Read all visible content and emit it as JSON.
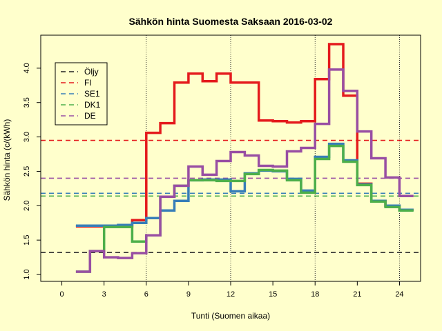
{
  "chart_data": {
    "type": "line",
    "title": "Sähkön hinta Suomesta Saksaan 2016-03-02",
    "xlabel": "Tunti (Suomen aikaa)",
    "ylabel": "Sähkön hinta (c/(kWh)",
    "xlim": [
      -1.5,
      25.5
    ],
    "ylim": [
      0.9,
      4.48
    ],
    "x_ticks": [
      0,
      3,
      6,
      9,
      12,
      15,
      18,
      21,
      24
    ],
    "y_ticks": [
      1.0,
      1.5,
      2.0,
      2.5,
      3.0,
      3.5,
      4.0
    ],
    "vertical_dotted_lines": [
      6,
      12,
      18,
      24
    ],
    "step_style": "stepped, each hour h drawn over [h, h+1]",
    "series": [
      {
        "name": "FI",
        "color": "#e41a1c",
        "x": [
          1,
          2,
          3,
          4,
          5,
          6,
          7,
          8,
          9,
          10,
          11,
          12,
          13,
          14,
          15,
          16,
          17,
          18,
          19,
          20,
          21,
          22,
          23,
          24
        ],
        "values": [
          1.7,
          1.7,
          1.7,
          1.7,
          1.79,
          3.06,
          3.2,
          3.79,
          3.92,
          3.81,
          3.92,
          3.79,
          3.79,
          3.24,
          3.23,
          3.21,
          3.23,
          3.84,
          4.35,
          3.6,
          2.32,
          2.07,
          2.0,
          1.94
        ]
      },
      {
        "name": "SE1",
        "color": "#377eb8",
        "x": [
          1,
          2,
          3,
          4,
          5,
          6,
          7,
          8,
          9,
          10,
          11,
          12,
          13,
          14,
          15,
          16,
          17,
          18,
          19,
          20,
          21,
          22,
          23,
          24
        ],
        "values": [
          1.71,
          1.71,
          1.71,
          1.72,
          1.75,
          1.82,
          1.93,
          2.07,
          2.37,
          2.38,
          2.38,
          2.21,
          2.47,
          2.51,
          2.5,
          2.39,
          2.22,
          2.71,
          2.9,
          2.66,
          2.31,
          2.07,
          2.0,
          1.94
        ]
      },
      {
        "name": "DK1",
        "color": "#4daf4a",
        "x": [
          1,
          2,
          3,
          4,
          5,
          6,
          7,
          8,
          9,
          10,
          11,
          12,
          13,
          14,
          15,
          16,
          17,
          18,
          19,
          20,
          21,
          22,
          23,
          24
        ],
        "values": [
          1.04,
          1.34,
          1.69,
          1.69,
          1.48,
          1.57,
          2.13,
          2.29,
          2.37,
          2.37,
          2.36,
          2.36,
          2.46,
          2.52,
          2.51,
          2.37,
          2.19,
          2.68,
          2.87,
          2.64,
          2.3,
          2.06,
          1.98,
          1.93
        ]
      },
      {
        "name": "DE",
        "color": "#984ea3",
        "x": [
          1,
          2,
          3,
          4,
          5,
          6,
          7,
          8,
          9,
          10,
          11,
          12,
          13,
          14,
          15,
          16,
          17,
          18,
          19,
          20,
          21,
          22,
          23,
          24
        ],
        "values": [
          1.04,
          1.34,
          1.25,
          1.24,
          1.31,
          1.57,
          2.13,
          2.29,
          2.57,
          2.45,
          2.65,
          2.78,
          2.73,
          2.58,
          2.57,
          2.79,
          2.84,
          3.19,
          3.98,
          3.67,
          3.08,
          2.69,
          2.41,
          2.14
        ]
      }
    ],
    "reference_lines": [
      {
        "name": "Öljy",
        "color": "#222222",
        "y": 1.32
      },
      {
        "name": "FI",
        "color": "#e41a1c",
        "y": 2.95
      },
      {
        "name": "SE1",
        "color": "#377eb8",
        "y": 2.18
      },
      {
        "name": "DK1",
        "color": "#4daf4a",
        "y": 2.14
      },
      {
        "name": "DE",
        "color": "#984ea3",
        "y": 2.4
      }
    ],
    "legend": {
      "placement": "top-left",
      "entries": [
        {
          "label": "Öljy",
          "color": "#222222"
        },
        {
          "label": "FI",
          "color": "#e41a1c"
        },
        {
          "label": "SE1",
          "color": "#377eb8"
        },
        {
          "label": "DK1",
          "color": "#4daf4a"
        },
        {
          "label": "DE",
          "color": "#984ea3"
        }
      ]
    },
    "background_color": "#ffffcc"
  }
}
